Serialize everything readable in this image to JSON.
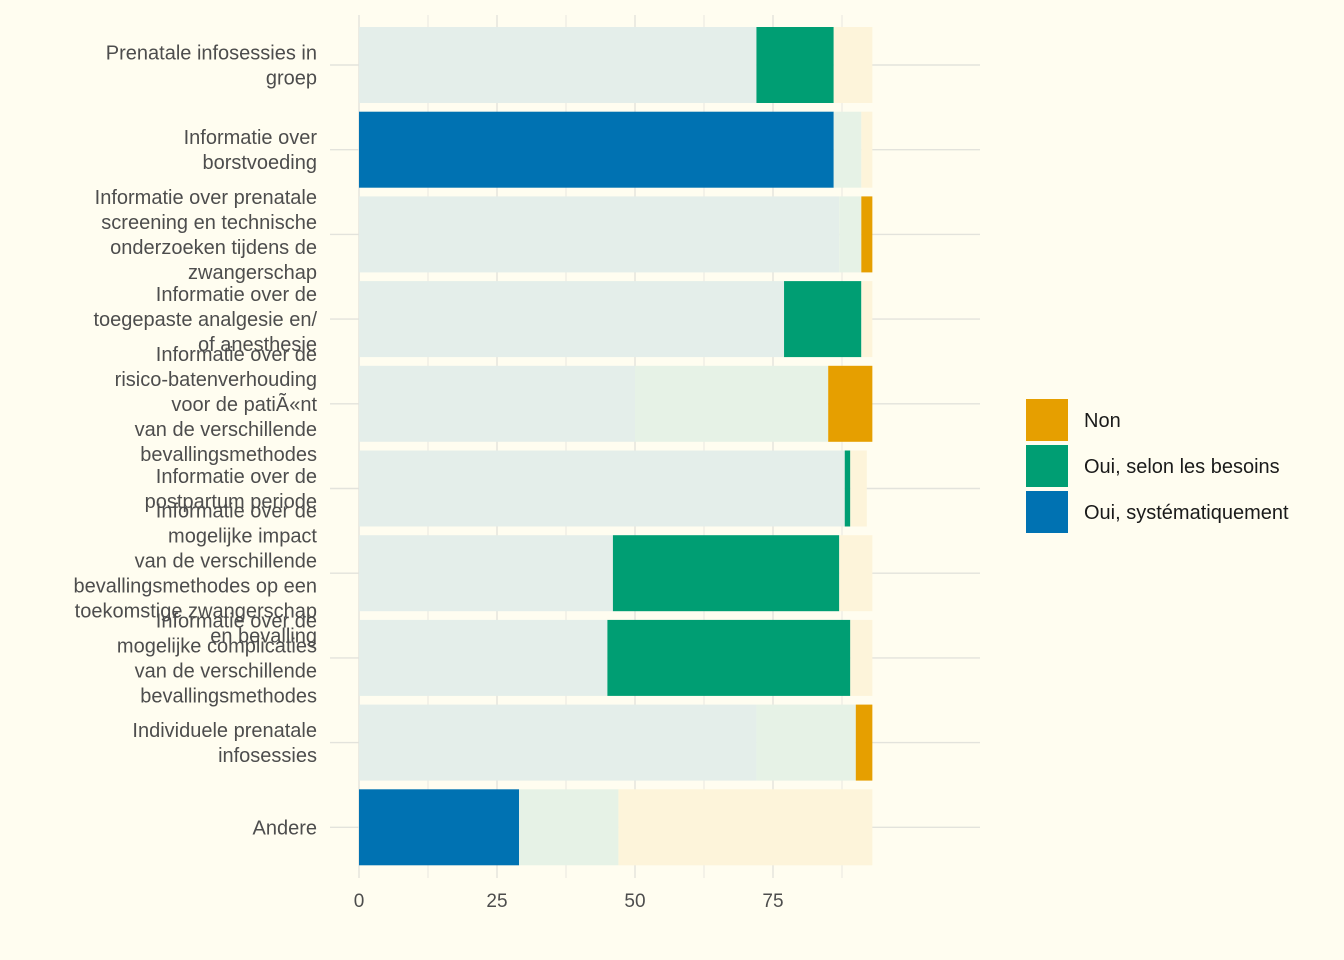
{
  "chart_data": {
    "type": "bar",
    "orientation": "horizontal",
    "stacked": true,
    "categories": [
      [
        "Prenatale infosessies in",
        "groep"
      ],
      [
        "Informatie over",
        "borstvoeding"
      ],
      [
        "Informatie over prenatale",
        "screening en technische",
        "onderzoeken tijdens de",
        "zwangerschap"
      ],
      [
        "Informatie over de",
        "toegepaste analgesie en/",
        "of anesthesie"
      ],
      [
        "Informatie over de",
        "risico-batenverhouding",
        "voor de patiÃ«nt",
        "van de verschillende",
        "bevallingsmethodes"
      ],
      [
        "Informatie over de",
        "postpartum periode"
      ],
      [
        "Informatie over de",
        "mogelijke impact",
        "van de verschillende",
        "bevallingsmethodes op een",
        "toekomstige zwangerschap",
        "en bevalling"
      ],
      [
        "Informatie over de",
        "mogelijke complicaties",
        "van de verschillende",
        "bevallingsmethodes"
      ],
      [
        "Individuele prenatale",
        "infosessies"
      ],
      [
        "Andere"
      ]
    ],
    "series": [
      {
        "name": "Oui, systématiquement",
        "color": "#0072b2",
        "values": [
          72,
          86,
          87,
          77,
          50,
          88,
          46,
          45,
          72,
          29
        ]
      },
      {
        "name": "Oui, selon les besoins",
        "color": "#009e73",
        "values": [
          14,
          5,
          4,
          14,
          35,
          1,
          41,
          44,
          18,
          18
        ]
      },
      {
        "name": "Non",
        "color": "#e69f00",
        "values": [
          7,
          2,
          2,
          2,
          8,
          3,
          6,
          4,
          3,
          46
        ]
      }
    ],
    "highlight_series": [
      1,
      0,
      2,
      1,
      2,
      1,
      1,
      1,
      2,
      0
    ],
    "xlim": [
      0,
      97
    ],
    "x_ticks": [
      0,
      25,
      50,
      75
    ],
    "grid": true,
    "legend": {
      "position": "right",
      "entries": [
        "Non",
        "Oui, selon les besoins",
        "Oui, systématiquement"
      ]
    }
  }
}
